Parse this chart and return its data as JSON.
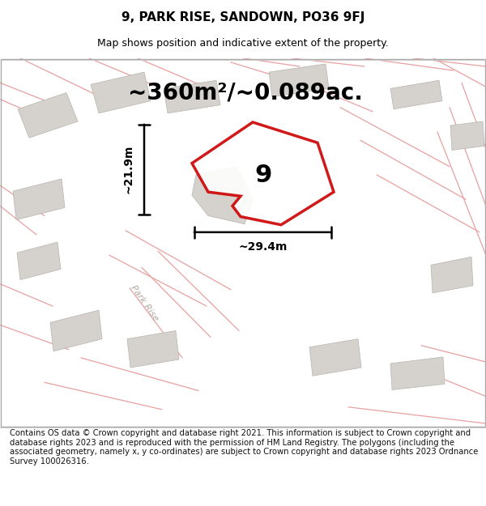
{
  "title": "9, PARK RISE, SANDOWN, PO36 9FJ",
  "subtitle": "Map shows position and indicative extent of the property.",
  "area_label": "~360m²/~0.089ac.",
  "width_label": "~29.4m",
  "height_label": "~21.9m",
  "number_label": "9",
  "footer": "Contains OS data © Crown copyright and database right 2021. This information is subject to Crown copyright and database rights 2023 and is reproduced with the permission of HM Land Registry. The polygons (including the associated geometry, namely x, y co-ordinates) are subject to Crown copyright and database rights 2023 Ordnance Survey 100026316.",
  "bg_color": "#ffffff",
  "map_bg": "#f5f2ee",
  "plot_outline_color": "#cc0000",
  "building_color": "#d5d1cc",
  "road_line_color": "#e8a0a0",
  "title_fontsize": 11,
  "subtitle_fontsize": 9,
  "footer_fontsize": 7.2,
  "area_fontsize": 20,
  "dim_fontsize": 10,
  "number_fontsize": 22
}
